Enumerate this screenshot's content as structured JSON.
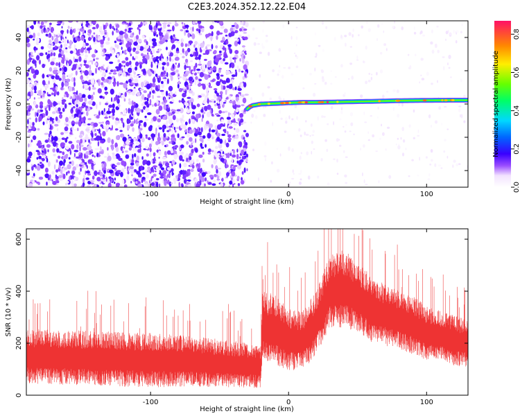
{
  "figure_title": "C2E3.2024.352.12.22.E04",
  "chart_data": [
    {
      "type": "heatmap",
      "title": "C2E3.2024.352.12.22.E04",
      "xlabel": "Height of straight line (km)",
      "ylabel": "Frequency (Hz)",
      "xlim": [
        -190,
        130
      ],
      "ylim": [
        -50,
        50
      ],
      "xticks": [
        -100,
        0,
        100
      ],
      "yticks": [
        -40,
        -20,
        0,
        20,
        40
      ],
      "colorbar": {
        "label": "Normalized spectral amplitude",
        "range": [
          0.0,
          0.87
        ],
        "ticks": [
          0.0,
          0.2,
          0.4,
          0.6,
          0.8
        ]
      },
      "description_regions": [
        {
          "x_range": [
            -190,
            -30
          ],
          "y_range": [
            -50,
            50
          ],
          "amplitude": "low (0.05-0.15), noise"
        },
        {
          "x_range": [
            -30,
            130
          ],
          "y_center": 1,
          "amplitude": "high (0.3-0.85), narrow carrier line near 0 Hz"
        },
        {
          "x_range": [
            -30,
            130
          ],
          "y_range": [
            -50,
            50
          ],
          "amplitude": "sparse weak (<0.05)"
        }
      ],
      "carrier_line": {
        "x": [
          -30,
          -27,
          -20,
          -10,
          0,
          10,
          20,
          40,
          60,
          80,
          100,
          120,
          130
        ],
        "frequency_hz": [
          -3,
          -1,
          0,
          0.3,
          0.7,
          1,
          1,
          1.3,
          1.6,
          2,
          2.2,
          2.3,
          2.3
        ]
      }
    },
    {
      "type": "line",
      "xlabel": "Height of straight line (km)",
      "ylabel": "SNR (10 * v/v)",
      "xlim": [
        -190,
        130
      ],
      "ylim": [
        0,
        640
      ],
      "xticks": [
        -100,
        0,
        100
      ],
      "yticks": [
        0,
        200,
        400,
        600
      ],
      "color": "#ee3333",
      "envelope": {
        "x": [
          -190,
          -160,
          -130,
          -100,
          -70,
          -40,
          -20,
          -19,
          -10,
          0,
          10,
          20,
          30,
          40,
          50,
          60,
          70,
          80,
          90,
          100,
          110,
          120,
          130
        ],
        "center": [
          150,
          145,
          140,
          135,
          130,
          120,
          110,
          270,
          250,
          215,
          210,
          280,
          400,
          410,
          380,
          330,
          310,
          290,
          270,
          240,
          230,
          210,
          200
        ],
        "half_width": [
          70,
          70,
          70,
          70,
          65,
          60,
          55,
          90,
          90,
          80,
          75,
          85,
          95,
          100,
          90,
          85,
          80,
          75,
          75,
          70,
          65,
          65,
          60
        ]
      }
    }
  ]
}
